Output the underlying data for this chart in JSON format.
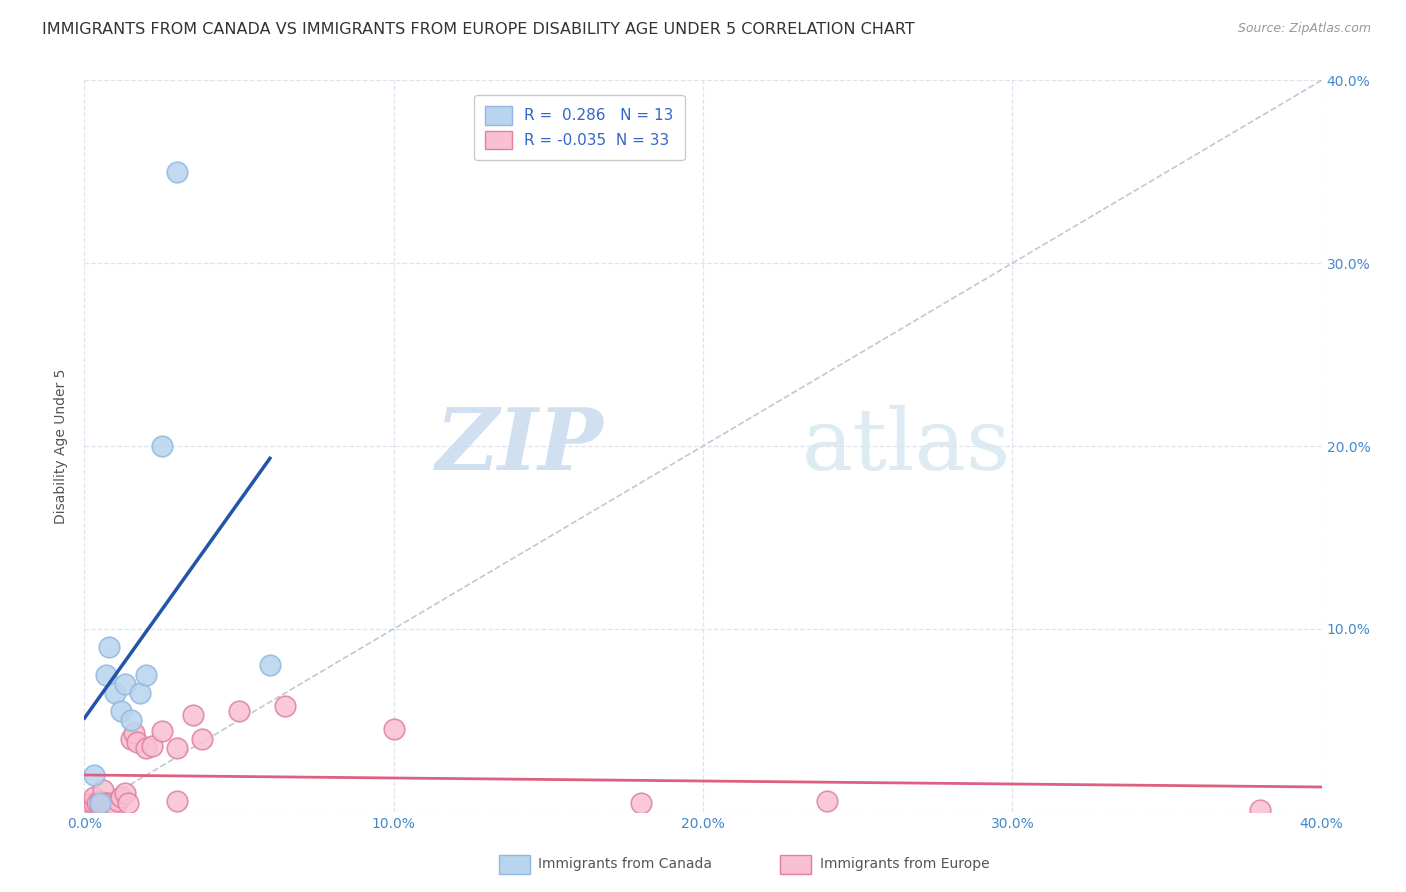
{
  "title": "IMMIGRANTS FROM CANADA VS IMMIGRANTS FROM EUROPE DISABILITY AGE UNDER 5 CORRELATION CHART",
  "source": "Source: ZipAtlas.com",
  "ylabel": "Disability Age Under 5",
  "xlim": [
    0.0,
    0.4
  ],
  "ylim": [
    0.0,
    0.4
  ],
  "xticks": [
    0.0,
    0.1,
    0.2,
    0.3,
    0.4
  ],
  "yticks": [
    0.0,
    0.1,
    0.2,
    0.3,
    0.4
  ],
  "xtick_labels": [
    "0.0%",
    "10.0%",
    "20.0%",
    "30.0%",
    "40.0%"
  ],
  "ytick_labels_right": [
    "",
    "10.0%",
    "20.0%",
    "30.0%",
    "40.0%"
  ],
  "canada_R": 0.286,
  "canada_N": 13,
  "europe_R": -0.035,
  "europe_N": 33,
  "canada_color": "#b8d4ee",
  "canada_edge_color": "#90b8e0",
  "canada_line_color": "#2255aa",
  "europe_color": "#f8c0d0",
  "europe_edge_color": "#e080a0",
  "europe_line_color": "#dd6080",
  "ref_line_color": "#c0c8d8",
  "background_color": "#ffffff",
  "grid_color": "#dde4ee",
  "canada_x": [
    0.003,
    0.005,
    0.007,
    0.008,
    0.01,
    0.012,
    0.013,
    0.015,
    0.018,
    0.02,
    0.025,
    0.03,
    0.06
  ],
  "canada_y": [
    0.02,
    0.005,
    0.075,
    0.09,
    0.065,
    0.055,
    0.07,
    0.05,
    0.065,
    0.075,
    0.2,
    0.35,
    0.08
  ],
  "europe_x": [
    0.002,
    0.003,
    0.003,
    0.004,
    0.005,
    0.005,
    0.006,
    0.006,
    0.007,
    0.007,
    0.008,
    0.009,
    0.01,
    0.011,
    0.012,
    0.013,
    0.014,
    0.015,
    0.016,
    0.017,
    0.02,
    0.022,
    0.025,
    0.03,
    0.03,
    0.035,
    0.038,
    0.05,
    0.065,
    0.1,
    0.18,
    0.24,
    0.38
  ],
  "europe_y": [
    0.005,
    0.005,
    0.008,
    0.005,
    0.006,
    0.003,
    0.005,
    0.012,
    0.005,
    0.005,
    0.004,
    0.005,
    0.003,
    0.006,
    0.008,
    0.01,
    0.005,
    0.04,
    0.043,
    0.038,
    0.035,
    0.036,
    0.044,
    0.006,
    0.035,
    0.053,
    0.04,
    0.055,
    0.058,
    0.045,
    0.005,
    0.006,
    0.001
  ],
  "watermark_zip": "ZIP",
  "watermark_atlas": "atlas",
  "title_fontsize": 11.5,
  "axis_label_fontsize": 10,
  "tick_fontsize": 10,
  "legend_fontsize": 11,
  "source_fontsize": 9
}
